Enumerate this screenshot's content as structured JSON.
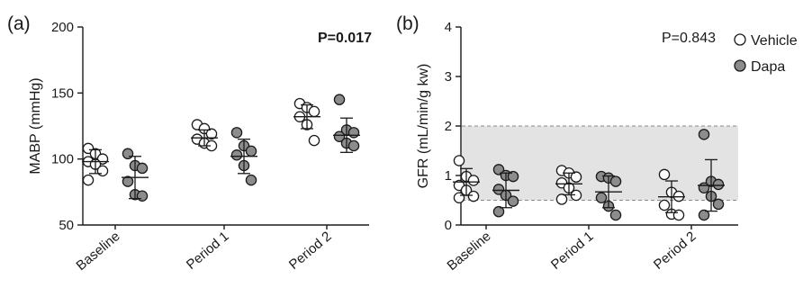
{
  "colors": {
    "vehicle": "#ffffff",
    "dapa": "#8c8c8c",
    "band": "#e3e3e3",
    "stroke": "#1a1a1a"
  },
  "legend": [
    {
      "key": "vehicle",
      "label": "Vehicle"
    },
    {
      "key": "dapa",
      "label": "Dapa"
    }
  ],
  "chart_data": [
    {
      "panel_label": "(a)",
      "type": "scatter",
      "ylabel": "MABP (mmHg)",
      "ylim": [
        50,
        200
      ],
      "yticks": [
        50,
        100,
        150,
        200
      ],
      "categories": [
        "Baseline",
        "Period 1",
        "Period 2"
      ],
      "p_value": "P=0.017",
      "p_value_bold": true,
      "series": [
        {
          "key": "vehicle",
          "points": [
            [
              108,
              104,
              100,
              98,
              96,
              91,
              84
            ],
            [
              126,
              123,
              119,
              115,
              112,
              110
            ],
            [
              142,
              139,
              136,
              132,
              126,
              114
            ]
          ],
          "mean": [
            98,
            116,
            132
          ],
          "sd": [
            9,
            6,
            9
          ]
        },
        {
          "key": "dapa",
          "points": [
            [
              104,
              95,
              93,
              83,
              73,
              72
            ],
            [
              120,
              110,
              106,
              103,
              95,
              84
            ],
            [
              145,
              122,
              120,
              117,
              112,
              110
            ]
          ],
          "mean": [
            86,
            102,
            118
          ],
          "sd": [
            16,
            13,
            13
          ]
        }
      ]
    },
    {
      "panel_label": "(b)",
      "type": "scatter",
      "ylabel": "GFR (mL/min/g kw)",
      "ylim": [
        0,
        4
      ],
      "yticks": [
        0,
        1,
        2,
        3,
        4
      ],
      "categories": [
        "Baseline",
        "Period 1",
        "Period 2"
      ],
      "p_value": "P=0.843",
      "p_value_bold": false,
      "reference_band": [
        0.5,
        2.0
      ],
      "series": [
        {
          "key": "vehicle",
          "points": [
            [
              1.3,
              0.98,
              0.9,
              0.8,
              0.7,
              0.58,
              0.55
            ],
            [
              1.1,
              1.05,
              0.97,
              0.85,
              0.75,
              0.6,
              0.52
            ],
            [
              1.02,
              0.66,
              0.58,
              0.4,
              0.22,
              0.2
            ]
          ],
          "mean": [
            0.87,
            0.83,
            0.57
          ],
          "sd": [
            0.27,
            0.22,
            0.32
          ]
        },
        {
          "key": "dapa",
          "points": [
            [
              1.12,
              1.0,
              0.98,
              0.72,
              0.6,
              0.48,
              0.27
            ],
            [
              0.98,
              0.95,
              0.88,
              0.55,
              0.38,
              0.2
            ],
            [
              1.83,
              0.88,
              0.82,
              0.75,
              0.58,
              0.42,
              0.2
            ]
          ],
          "mean": [
            0.7,
            0.67,
            0.8
          ],
          "sd": [
            0.35,
            0.32,
            0.52
          ]
        }
      ]
    }
  ]
}
